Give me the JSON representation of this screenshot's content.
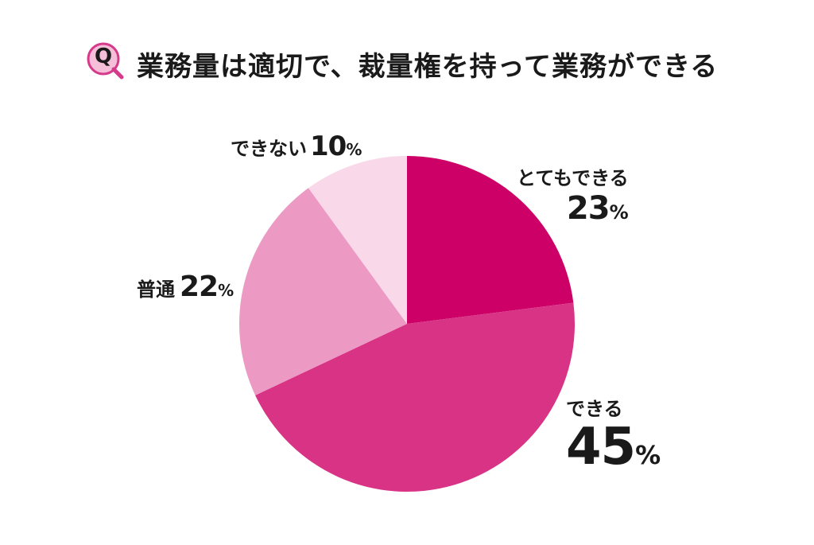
{
  "title": {
    "badge": "Q",
    "text": "業務量は適切で、裁量権を持って業務ができる"
  },
  "colors": {
    "badge_fill": "#f5bfd9",
    "badge_stroke": "#d63a8a"
  },
  "chart_data": {
    "type": "pie",
    "start_angle_deg": 0,
    "direction": "clockwise",
    "slices": [
      {
        "label": "とてもできる",
        "value": 23,
        "unit": "%",
        "color": "#cc0066"
      },
      {
        "label": "できる",
        "value": 45,
        "unit": "%",
        "color": "#d93386"
      },
      {
        "label": "普通",
        "value": 22,
        "unit": "%",
        "color": "#ec99c4"
      },
      {
        "label": "できない",
        "value": 10,
        "unit": "%",
        "color": "#f9d9e9"
      }
    ]
  }
}
